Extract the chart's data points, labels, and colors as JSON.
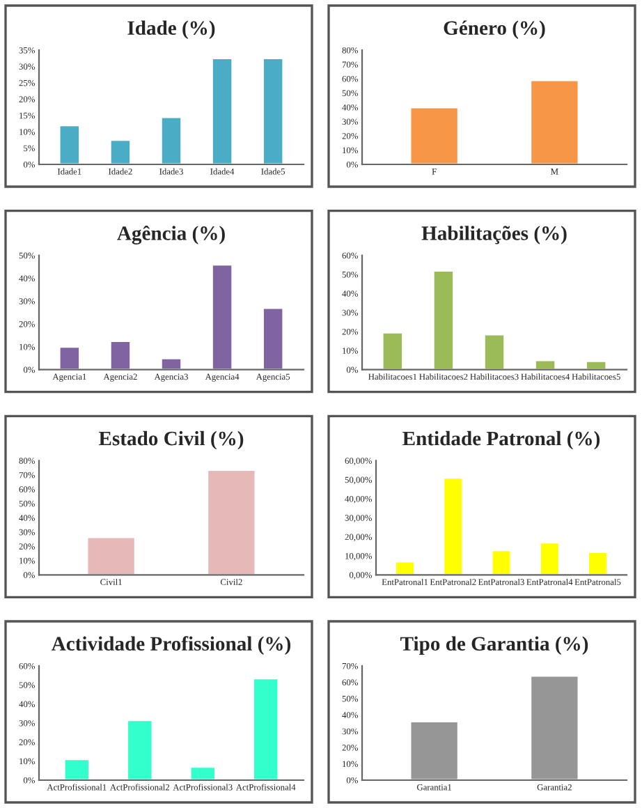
{
  "chart_data": [
    {
      "type": "bar",
      "title": "Idade (%)",
      "categories": [
        "Idade1",
        "Idade2",
        "Idade3",
        "Idade4",
        "Idade5"
      ],
      "values": [
        12,
        7.5,
        14.5,
        32.5,
        32.5
      ],
      "color": "#4bacc6",
      "ylim": [
        0,
        35
      ],
      "yticks": [
        {
          "value": 0,
          "label": "0%"
        },
        {
          "value": 5,
          "label": "5%"
        },
        {
          "value": 10,
          "label": "10%"
        },
        {
          "value": 15,
          "label": "15%"
        },
        {
          "value": 20,
          "label": "20%"
        },
        {
          "value": 25,
          "label": "25%"
        },
        {
          "value": 30,
          "label": "30%"
        },
        {
          "value": 35,
          "label": "35%"
        }
      ],
      "grid": false,
      "legend": false
    },
    {
      "type": "bar",
      "title": "Género (%)",
      "categories": [
        "F",
        "M"
      ],
      "values": [
        40,
        59
      ],
      "color": "#f79646",
      "ylim": [
        0,
        80
      ],
      "yticks": [
        {
          "value": 0,
          "label": "0%"
        },
        {
          "value": 10,
          "label": "10%"
        },
        {
          "value": 20,
          "label": "20%"
        },
        {
          "value": 30,
          "label": "30%"
        },
        {
          "value": 40,
          "label": "40%"
        },
        {
          "value": 50,
          "label": "50%"
        },
        {
          "value": 60,
          "label": "60%"
        },
        {
          "value": 70,
          "label": "70%"
        },
        {
          "value": 80,
          "label": "80%"
        }
      ],
      "grid": false,
      "legend": false
    },
    {
      "type": "bar",
      "title": "Agência (%)",
      "categories": [
        "Agencia1",
        "Agencia2",
        "Agencia3",
        "Agencia4",
        "Agencia5"
      ],
      "values": [
        10,
        12.5,
        5,
        46,
        27
      ],
      "color": "#8064a2",
      "ylim": [
        0,
        50
      ],
      "yticks": [
        {
          "value": 0,
          "label": "0%"
        },
        {
          "value": 10,
          "label": "10%"
        },
        {
          "value": 20,
          "label": "20%"
        },
        {
          "value": 30,
          "label": "30%"
        },
        {
          "value": 40,
          "label": "40%"
        },
        {
          "value": 50,
          "label": "50%"
        }
      ],
      "grid": false,
      "legend": false
    },
    {
      "type": "bar",
      "title": "Habilitações (%)",
      "categories": [
        "Habilitacoes1",
        "Habilitacoes2",
        "Habilitacoes3",
        "Habilitacoes4",
        "Habilitacoes5"
      ],
      "values": [
        19.5,
        52,
        18.5,
        5,
        4.5
      ],
      "color": "#9bbb59",
      "ylim": [
        0,
        60
      ],
      "yticks": [
        {
          "value": 0,
          "label": "0%"
        },
        {
          "value": 10,
          "label": "10%"
        },
        {
          "value": 20,
          "label": "20%"
        },
        {
          "value": 30,
          "label": "30%"
        },
        {
          "value": 40,
          "label": "40%"
        },
        {
          "value": 50,
          "label": "50%"
        },
        {
          "value": 60,
          "label": "60%"
        }
      ],
      "grid": false,
      "legend": false
    },
    {
      "type": "bar",
      "title": "Estado Civil (%)",
      "categories": [
        "Civil1",
        "Civil2"
      ],
      "values": [
        26.5,
        73.5
      ],
      "color": "#e6b9b8",
      "ylim": [
        0,
        80
      ],
      "yticks": [
        {
          "value": 0,
          "label": "0%"
        },
        {
          "value": 10,
          "label": "10%"
        },
        {
          "value": 20,
          "label": "20%"
        },
        {
          "value": 30,
          "label": "30%"
        },
        {
          "value": 40,
          "label": "40%"
        },
        {
          "value": 50,
          "label": "50%"
        },
        {
          "value": 60,
          "label": "60%"
        },
        {
          "value": 70,
          "label": "70%"
        },
        {
          "value": 80,
          "label": "80%"
        }
      ],
      "grid": false,
      "legend": false
    },
    {
      "type": "bar",
      "title": "Entidade Patronal (%)",
      "categories": [
        "EntPatronal1",
        "EntPatronal2",
        "EntPatronal3",
        "EntPatronal4",
        "EntPatronal5"
      ],
      "values": [
        7,
        51,
        13,
        17,
        12
      ],
      "color": "#ffff00",
      "ylim": [
        0,
        60
      ],
      "yticks": [
        {
          "value": 0,
          "label": "0,00%"
        },
        {
          "value": 10,
          "label": "10,00%"
        },
        {
          "value": 20,
          "label": "20,00%"
        },
        {
          "value": 30,
          "label": "30,00%"
        },
        {
          "value": 40,
          "label": "40,00%"
        },
        {
          "value": 50,
          "label": "50,00%"
        },
        {
          "value": 60,
          "label": "60,00%"
        }
      ],
      "grid": false,
      "legend": false
    },
    {
      "type": "bar",
      "title": "Actividade Profissional (%)",
      "categories": [
        "ActProfissional1",
        "ActProfissional2",
        "ActProfissional3",
        "ActProfissional4"
      ],
      "values": [
        11,
        31.5,
        7,
        53.5
      ],
      "color": "#33ffcc",
      "ylim": [
        0,
        60
      ],
      "yticks": [
        {
          "value": 0,
          "label": "0%"
        },
        {
          "value": 10,
          "label": "10%"
        },
        {
          "value": 20,
          "label": "20%"
        },
        {
          "value": 30,
          "label": "30%"
        },
        {
          "value": 40,
          "label": "40%"
        },
        {
          "value": 50,
          "label": "50%"
        },
        {
          "value": 60,
          "label": "60%"
        }
      ],
      "grid": false,
      "legend": false
    },
    {
      "type": "bar",
      "title": "Tipo de Garantia (%)",
      "categories": [
        "Garantia1",
        "Garantia2"
      ],
      "values": [
        36,
        64
      ],
      "color": "#969696",
      "ylim": [
        0,
        70
      ],
      "yticks": [
        {
          "value": 0,
          "label": "0%"
        },
        {
          "value": 10,
          "label": "10%"
        },
        {
          "value": 20,
          "label": "20%"
        },
        {
          "value": 30,
          "label": "30%"
        },
        {
          "value": 40,
          "label": "40%"
        },
        {
          "value": 50,
          "label": "50%"
        },
        {
          "value": 60,
          "label": "60%"
        },
        {
          "value": 70,
          "label": "70%"
        }
      ],
      "grid": false,
      "legend": false
    }
  ]
}
